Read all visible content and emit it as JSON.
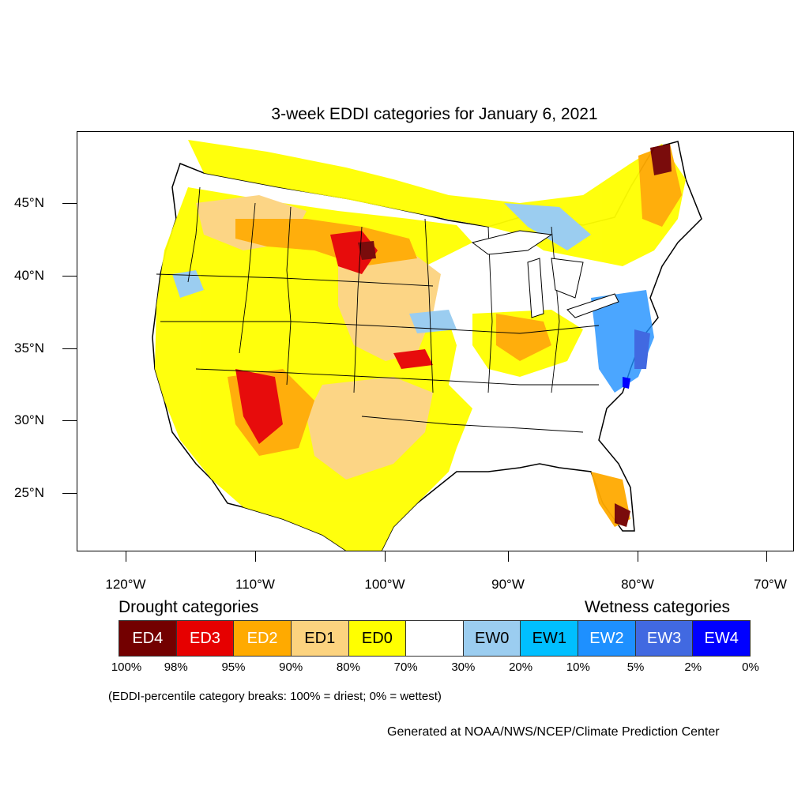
{
  "title": "3-week EDDI categories for January 6, 2021",
  "lat_labels": [
    "45°N",
    "40°N",
    "35°N",
    "30°N",
    "25°N"
  ],
  "lon_labels": [
    "120°W",
    "110°W",
    "100°W",
    "90°W",
    "80°W",
    "70°W"
  ],
  "legend": {
    "drought_heading": "Drought categories",
    "wetness_heading": "Wetness categories",
    "categories": [
      {
        "label": "ED4",
        "color": "#730000",
        "text_color": "#ffffff"
      },
      {
        "label": "ED3",
        "color": "#e60000",
        "text_color": "#ffffff"
      },
      {
        "label": "ED2",
        "color": "#ffaa00",
        "text_color": "#ffffff"
      },
      {
        "label": "ED1",
        "color": "#fcd37f",
        "text_color": "#000000"
      },
      {
        "label": "ED0",
        "color": "#ffff00",
        "text_color": "#000000"
      },
      {
        "label": "",
        "color": "#ffffff",
        "text_color": "#000000"
      },
      {
        "label": "EW0",
        "color": "#9bcdf0",
        "text_color": "#000000"
      },
      {
        "label": "EW1",
        "color": "#00bfff",
        "text_color": "#000000"
      },
      {
        "label": "EW2",
        "color": "#1e90ff",
        "text_color": "#ffffff"
      },
      {
        "label": "EW3",
        "color": "#4169e1",
        "text_color": "#ffffff"
      },
      {
        "label": "EW4",
        "color": "#0000ff",
        "text_color": "#ffffff"
      }
    ],
    "breaks": [
      "100%",
      "98%",
      "95%",
      "90%",
      "80%",
      "70%",
      "30%",
      "20%",
      "10%",
      "5%",
      "2%",
      "0%"
    ]
  },
  "note": "(EDDI-percentile category breaks: 100% = driest; 0% = wettest)",
  "credit": "Generated at NOAA/NWS/NCEP/Climate Prediction Center"
}
